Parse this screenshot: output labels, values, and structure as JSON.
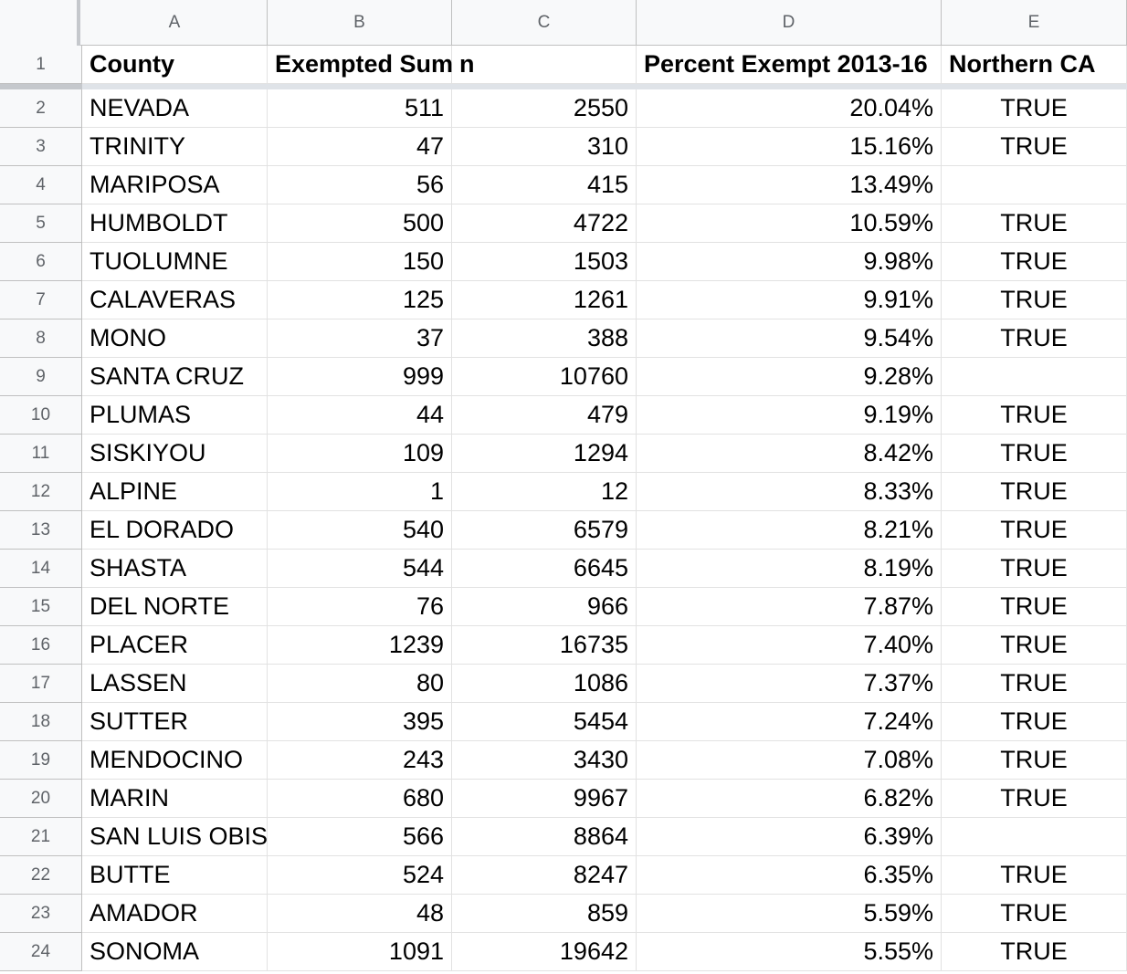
{
  "columns": [
    "A",
    "B",
    "C",
    "D",
    "E"
  ],
  "header": {
    "row_number": "1",
    "cells": [
      "County",
      "Exempted Sum",
      "n",
      "Percent Exempt 2013-16",
      "Northern CA"
    ]
  },
  "rows": [
    {
      "num": "2",
      "county": "NEVADA",
      "exempted": "511",
      "n": "2550",
      "percent": "20.04%",
      "northern": "TRUE"
    },
    {
      "num": "3",
      "county": "TRINITY",
      "exempted": "47",
      "n": "310",
      "percent": "15.16%",
      "northern": "TRUE"
    },
    {
      "num": "4",
      "county": "MARIPOSA",
      "exempted": "56",
      "n": "415",
      "percent": "13.49%",
      "northern": ""
    },
    {
      "num": "5",
      "county": "HUMBOLDT",
      "exempted": "500",
      "n": "4722",
      "percent": "10.59%",
      "northern": "TRUE"
    },
    {
      "num": "6",
      "county": "TUOLUMNE",
      "exempted": "150",
      "n": "1503",
      "percent": "9.98%",
      "northern": "TRUE"
    },
    {
      "num": "7",
      "county": "CALAVERAS",
      "exempted": "125",
      "n": "1261",
      "percent": "9.91%",
      "northern": "TRUE"
    },
    {
      "num": "8",
      "county": "MONO",
      "exempted": "37",
      "n": "388",
      "percent": "9.54%",
      "northern": "TRUE"
    },
    {
      "num": "9",
      "county": "SANTA CRUZ",
      "exempted": "999",
      "n": "10760",
      "percent": "9.28%",
      "northern": ""
    },
    {
      "num": "10",
      "county": "PLUMAS",
      "exempted": "44",
      "n": "479",
      "percent": "9.19%",
      "northern": "TRUE"
    },
    {
      "num": "11",
      "county": "SISKIYOU",
      "exempted": "109",
      "n": "1294",
      "percent": "8.42%",
      "northern": "TRUE"
    },
    {
      "num": "12",
      "county": "ALPINE",
      "exempted": "1",
      "n": "12",
      "percent": "8.33%",
      "northern": "TRUE"
    },
    {
      "num": "13",
      "county": "EL DORADO",
      "exempted": "540",
      "n": "6579",
      "percent": "8.21%",
      "northern": "TRUE"
    },
    {
      "num": "14",
      "county": "SHASTA",
      "exempted": "544",
      "n": "6645",
      "percent": "8.19%",
      "northern": "TRUE"
    },
    {
      "num": "15",
      "county": "DEL NORTE",
      "exempted": "76",
      "n": "966",
      "percent": "7.87%",
      "northern": "TRUE"
    },
    {
      "num": "16",
      "county": "PLACER",
      "exempted": "1239",
      "n": "16735",
      "percent": "7.40%",
      "northern": "TRUE"
    },
    {
      "num": "17",
      "county": "LASSEN",
      "exempted": "80",
      "n": "1086",
      "percent": "7.37%",
      "northern": "TRUE"
    },
    {
      "num": "18",
      "county": "SUTTER",
      "exempted": "395",
      "n": "5454",
      "percent": "7.24%",
      "northern": "TRUE"
    },
    {
      "num": "19",
      "county": "MENDOCINO",
      "exempted": "243",
      "n": "3430",
      "percent": "7.08%",
      "northern": "TRUE"
    },
    {
      "num": "20",
      "county": "MARIN",
      "exempted": "680",
      "n": "9967",
      "percent": "6.82%",
      "northern": "TRUE"
    },
    {
      "num": "21",
      "county": "SAN LUIS OBIS",
      "exempted": "566",
      "n": "8864",
      "percent": "6.39%",
      "northern": ""
    },
    {
      "num": "22",
      "county": "BUTTE",
      "exempted": "524",
      "n": "8247",
      "percent": "6.35%",
      "northern": "TRUE"
    },
    {
      "num": "23",
      "county": "AMADOR",
      "exempted": "48",
      "n": "859",
      "percent": "5.59%",
      "northern": "TRUE"
    },
    {
      "num": "24",
      "county": "SONOMA",
      "exempted": "1091",
      "n": "19642",
      "percent": "5.55%",
      "northern": "TRUE"
    }
  ]
}
